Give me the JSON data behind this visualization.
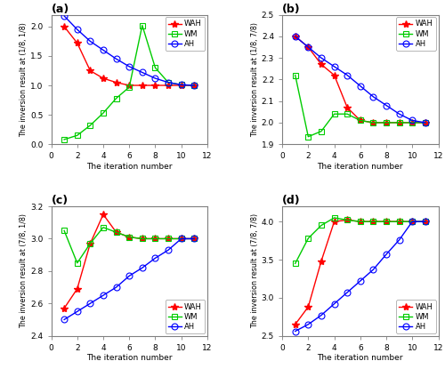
{
  "panel_a": {
    "title": "(a)",
    "ylabel": "The inversion result at (1/8, 1/8)",
    "xlabel": "The iteration number",
    "xlim": [
      0,
      12
    ],
    "ylim": [
      0,
      2.2
    ],
    "yticks": [
      0,
      0.5,
      1.0,
      1.5,
      2.0
    ],
    "legend_loc": "upper right",
    "WAH_x": [
      1,
      2,
      3,
      4,
      5,
      6,
      7,
      8,
      9,
      10,
      11
    ],
    "WAH_y": [
      2.0,
      1.72,
      1.25,
      1.12,
      1.05,
      1.0,
      1.0,
      1.0,
      1.0,
      1.0,
      1.0
    ],
    "WM_x": [
      1,
      2,
      3,
      4,
      5,
      6,
      7,
      8,
      9,
      10,
      11
    ],
    "WM_y": [
      0.08,
      0.15,
      0.32,
      0.53,
      0.78,
      0.97,
      2.02,
      1.3,
      1.05,
      1.01,
      1.0
    ],
    "AH_x": [
      1,
      2,
      3,
      4,
      5,
      6,
      7,
      8,
      9,
      10,
      11
    ],
    "AH_y": [
      2.18,
      1.95,
      1.75,
      1.6,
      1.45,
      1.32,
      1.22,
      1.12,
      1.05,
      1.01,
      1.0
    ]
  },
  "panel_b": {
    "title": "(b)",
    "ylabel": "The inversion result at (1/8, 7/8)",
    "xlabel": "The iteration number",
    "xlim": [
      0,
      12
    ],
    "ylim": [
      1.9,
      2.5
    ],
    "yticks": [
      1.9,
      2.0,
      2.1,
      2.2,
      2.3,
      2.4,
      2.5
    ],
    "legend_loc": "upper right",
    "WAH_x": [
      1,
      2,
      3,
      4,
      5,
      6,
      7,
      8,
      9,
      10,
      11
    ],
    "WAH_y": [
      2.4,
      2.35,
      2.27,
      2.22,
      2.07,
      2.01,
      2.0,
      2.0,
      2.0,
      2.0,
      2.0
    ],
    "WM_x": [
      1,
      2,
      3,
      4,
      5,
      6,
      7,
      8,
      9,
      10,
      11
    ],
    "WM_y": [
      2.22,
      1.935,
      1.96,
      2.04,
      2.04,
      2.01,
      2.0,
      2.0,
      2.0,
      2.0,
      2.0
    ],
    "AH_x": [
      1,
      2,
      3,
      4,
      5,
      6,
      7,
      8,
      9,
      10,
      11
    ],
    "AH_y": [
      2.4,
      2.35,
      2.3,
      2.26,
      2.22,
      2.17,
      2.12,
      2.08,
      2.04,
      2.01,
      2.0
    ]
  },
  "panel_c": {
    "title": "(c)",
    "ylabel": "The inversion result at (7/8, 1/8)",
    "xlabel": "The iteration number",
    "xlim": [
      0,
      12
    ],
    "ylim": [
      2.4,
      3.2
    ],
    "yticks": [
      2.4,
      2.6,
      2.8,
      3.0,
      3.2
    ],
    "legend_loc": "lower right",
    "WAH_x": [
      1,
      2,
      3,
      4,
      5,
      6,
      7,
      8,
      9,
      10,
      11
    ],
    "WAH_y": [
      2.57,
      2.69,
      2.97,
      3.15,
      3.04,
      3.01,
      3.0,
      3.0,
      3.0,
      3.0,
      3.0
    ],
    "WM_x": [
      1,
      2,
      3,
      4,
      5,
      6,
      7,
      8,
      9,
      10,
      11
    ],
    "WM_y": [
      3.05,
      2.85,
      2.97,
      3.07,
      3.04,
      3.01,
      3.0,
      3.0,
      3.0,
      3.0,
      3.0
    ],
    "AH_x": [
      1,
      2,
      3,
      4,
      5,
      6,
      7,
      8,
      9,
      10,
      11
    ],
    "AH_y": [
      2.5,
      2.55,
      2.6,
      2.65,
      2.7,
      2.77,
      2.82,
      2.88,
      2.93,
      3.0,
      3.0
    ]
  },
  "panel_d": {
    "title": "(d)",
    "ylabel": "The inversion result at (7/8, 7/8)",
    "xlabel": "The iteration number",
    "xlim": [
      0,
      12
    ],
    "ylim": [
      2.5,
      4.2
    ],
    "yticks": [
      2.5,
      3.0,
      3.5,
      4.0
    ],
    "legend_loc": "lower right",
    "WAH_x": [
      1,
      2,
      3,
      4,
      5,
      6,
      7,
      8,
      9,
      10,
      11
    ],
    "WAH_y": [
      2.65,
      2.88,
      3.48,
      4.0,
      4.02,
      4.0,
      4.0,
      4.0,
      4.0,
      4.0,
      4.0
    ],
    "WM_x": [
      1,
      2,
      3,
      4,
      5,
      6,
      7,
      8,
      9,
      10,
      11
    ],
    "WM_y": [
      3.45,
      3.78,
      3.95,
      4.05,
      4.02,
      4.0,
      4.0,
      4.0,
      4.0,
      4.0,
      4.0
    ],
    "AH_x": [
      1,
      2,
      3,
      4,
      5,
      6,
      7,
      8,
      9,
      10,
      11
    ],
    "AH_y": [
      2.56,
      2.65,
      2.77,
      2.92,
      3.07,
      3.22,
      3.37,
      3.57,
      3.76,
      4.0,
      4.0
    ]
  },
  "WAH_color": "#FF0000",
  "WM_color": "#00CC00",
  "AH_color": "#0000FF",
  "WAH_marker": "*",
  "WM_marker": "s",
  "AH_marker": "o",
  "linewidth": 1.0,
  "markersize_star": 6,
  "markersize_sq": 4,
  "markersize_o": 5,
  "bg_color": "#FFFFFF",
  "axis_bg": "#FFFFFF",
  "border_color": "#808080"
}
